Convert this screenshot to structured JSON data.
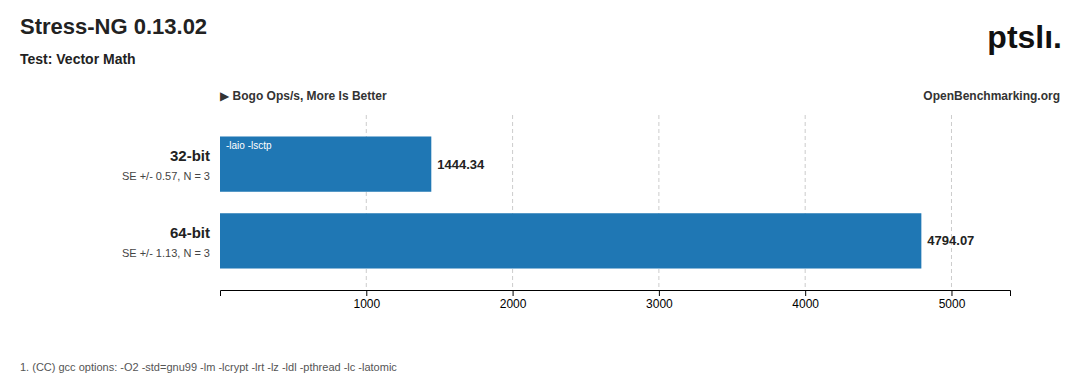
{
  "chart_data": {
    "type": "bar",
    "orientation": "horizontal",
    "title": "Stress-NG 0.13.02",
    "subtitle": "Test: Vector Math",
    "xlabel": "▶ Bogo Ops/s, More Is Better",
    "categories": [
      "32-bit",
      "64-bit"
    ],
    "values": [
      1444.34,
      4794.07
    ],
    "se_labels": [
      "SE +/- 0.57, N = 3",
      "SE +/- 1.13, N = 3"
    ],
    "data_labels": true,
    "bar_annotation": "-laio -lsctp",
    "source": "OpenBenchmarking.org",
    "logo": "ptslı.",
    "footnote": "1. (CC) gcc options: -O2 -std=gnu99 -lm -lcrypt -lrt -lz -ldl -pthread -lc -latomic",
    "xlim": [
      0,
      5400
    ],
    "xticks": [
      1000,
      2000,
      3000,
      4000,
      5000
    ],
    "grid": true
  }
}
